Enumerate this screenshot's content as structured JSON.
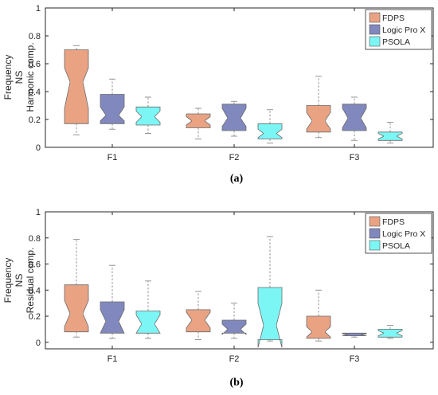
{
  "panels": [
    {
      "caption": "(a)",
      "ylabel": [
        "Frequency",
        "NS",
        "Harmonic comp."
      ],
      "chart_data": {
        "type": "boxplot",
        "notched": true,
        "title": "",
        "xlabel": "",
        "ylabel": "Frequency NS Harmonic comp.",
        "categories": [
          "F1",
          "F2",
          "F3"
        ],
        "ylim": [
          0,
          1
        ],
        "yticks": [
          0,
          0.2,
          0.4,
          0.6,
          0.8,
          1
        ],
        "ytick_labels": [
          "0",
          "0.2",
          "0.4",
          "0.6",
          "0.8",
          "1"
        ],
        "grid": false,
        "legend_position": "top-right",
        "series": [
          {
            "name": "FDPS",
            "color": "#E9A383",
            "values": [
              {
                "min": 0.09,
                "q1": 0.17,
                "median": 0.47,
                "q3": 0.7,
                "max": 0.73,
                "notch_low": 0.28,
                "notch_high": 0.57
              },
              {
                "min": 0.06,
                "q1": 0.14,
                "median": 0.19,
                "q3": 0.24,
                "max": 0.28,
                "notch_low": 0.16,
                "notch_high": 0.22
              },
              {
                "min": 0.07,
                "q1": 0.11,
                "median": 0.19,
                "q3": 0.3,
                "max": 0.51,
                "notch_low": 0.13,
                "notch_high": 0.25
              }
            ]
          },
          {
            "name": "Logic Pro X",
            "color": "#8088BE",
            "values": [
              {
                "min": 0.13,
                "q1": 0.17,
                "median": 0.23,
                "q3": 0.38,
                "max": 0.49,
                "notch_low": 0.19,
                "notch_high": 0.29
              },
              {
                "min": 0.08,
                "q1": 0.12,
                "median": 0.21,
                "q3": 0.31,
                "max": 0.33,
                "notch_low": 0.15,
                "notch_high": 0.28
              },
              {
                "min": 0.05,
                "q1": 0.12,
                "median": 0.21,
                "q3": 0.31,
                "max": 0.36,
                "notch_low": 0.14,
                "notch_high": 0.28
              }
            ]
          },
          {
            "name": "PSOLA",
            "color": "#7CF6F4",
            "values": [
              {
                "min": 0.1,
                "q1": 0.16,
                "median": 0.22,
                "q3": 0.29,
                "max": 0.36,
                "notch_low": 0.18,
                "notch_high": 0.26
              },
              {
                "min": 0.03,
                "q1": 0.06,
                "median": 0.1,
                "q3": 0.17,
                "max": 0.27,
                "notch_low": 0.07,
                "notch_high": 0.13
              },
              {
                "min": 0.03,
                "q1": 0.05,
                "median": 0.08,
                "q3": 0.11,
                "max": 0.18,
                "notch_low": 0.06,
                "notch_high": 0.1
              }
            ]
          }
        ]
      }
    },
    {
      "caption": "(b)",
      "ylabel": [
        "Frequency",
        "NS",
        "Residual comp."
      ],
      "chart_data": {
        "type": "boxplot",
        "notched": true,
        "title": "",
        "xlabel": "",
        "ylabel": "Frequency NS Residual comp.",
        "categories": [
          "F1",
          "F2",
          "F3"
        ],
        "ylim": [
          -0.05,
          1
        ],
        "yticks": [
          0,
          0.2,
          0.4,
          0.6,
          0.8,
          1
        ],
        "ytick_labels": [
          "0",
          "0.2",
          "0.4",
          "0.6",
          "0.8",
          "1"
        ],
        "grid": false,
        "legend_position": "top-right",
        "series": [
          {
            "name": "FDPS",
            "color": "#E9A383",
            "values": [
              {
                "min": 0.04,
                "q1": 0.08,
                "median": 0.22,
                "q3": 0.44,
                "max": 0.79,
                "notch_low": 0.12,
                "notch_high": 0.32
              },
              {
                "min": 0.02,
                "q1": 0.08,
                "median": 0.17,
                "q3": 0.25,
                "max": 0.39,
                "notch_low": 0.11,
                "notch_high": 0.23
              },
              {
                "min": 0.01,
                "q1": 0.03,
                "median": 0.08,
                "q3": 0.2,
                "max": 0.4,
                "notch_low": 0.04,
                "notch_high": 0.12
              }
            ]
          },
          {
            "name": "Logic Pro X",
            "color": "#8088BE",
            "values": [
              {
                "min": 0.03,
                "q1": 0.07,
                "median": 0.16,
                "q3": 0.31,
                "max": 0.59,
                "notch_low": 0.07,
                "notch_high": 0.25
              },
              {
                "min": 0.03,
                "q1": 0.07,
                "median": 0.1,
                "q3": 0.17,
                "max": 0.3,
                "notch_low": 0.06,
                "notch_high": 0.14
              },
              {
                "min": 0.04,
                "q1": 0.05,
                "median": 0.06,
                "q3": 0.07,
                "max": 0.07,
                "notch_low": 0.05,
                "notch_high": 0.065
              }
            ]
          },
          {
            "name": "PSOLA",
            "color": "#7CF6F4",
            "values": [
              {
                "min": 0.03,
                "q1": 0.07,
                "median": 0.14,
                "q3": 0.24,
                "max": 0.47,
                "notch_low": 0.07,
                "notch_high": 0.21
              },
              {
                "min": 0.01,
                "q1": 0.02,
                "median": 0.13,
                "q3": 0.42,
                "max": 0.81,
                "notch_low": -0.04,
                "notch_high": 0.3
              },
              {
                "min": 0.03,
                "q1": 0.04,
                "median": 0.07,
                "q3": 0.1,
                "max": 0.13,
                "notch_low": 0.05,
                "notch_high": 0.09
              }
            ]
          }
        ]
      }
    }
  ]
}
